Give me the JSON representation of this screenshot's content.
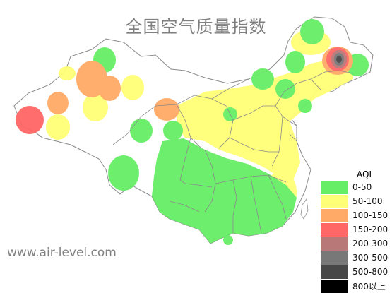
{
  "title": "全国空气质量指数",
  "watermark": "www.air-level.com",
  "legend": {
    "title": "AQI",
    "items": [
      {
        "label": "0-50",
        "color": "#66ee66"
      },
      {
        "label": "50-100",
        "color": "#ffff77"
      },
      {
        "label": "100-150",
        "color": "#ffaa66"
      },
      {
        "label": "150-200",
        "color": "#ff6666"
      },
      {
        "label": "200-300",
        "color": "#b87878"
      },
      {
        "label": "300-500",
        "color": "#787878"
      },
      {
        "label": "500-800",
        "color": "#474747"
      },
      {
        "label": "800以上",
        "color": "#000000"
      }
    ]
  },
  "colors": {
    "good": "#66ee66",
    "moderate": "#ffff77",
    "sensitive": "#ffaa66",
    "unhealthy": "#ff6666",
    "very_unhealthy": "#b87878",
    "hazardous": "#787878",
    "severe": "#474747",
    "border": "#8a8a8a"
  }
}
